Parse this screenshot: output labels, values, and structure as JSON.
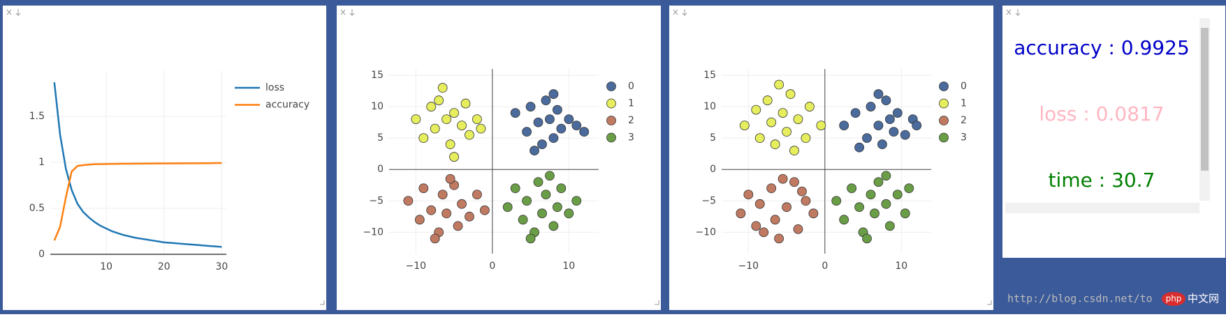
{
  "chart_data": [
    {
      "type": "line",
      "x": [
        1,
        2,
        3,
        4,
        5,
        6,
        7,
        8,
        9,
        10,
        11,
        12,
        13,
        14,
        15,
        16,
        17,
        18,
        19,
        20,
        21,
        22,
        23,
        24,
        25,
        26,
        27,
        28,
        29,
        30
      ],
      "series": [
        {
          "name": "loss",
          "color": "#1f77b4",
          "values": [
            1.87,
            1.3,
            0.93,
            0.7,
            0.55,
            0.46,
            0.4,
            0.35,
            0.31,
            0.28,
            0.25,
            0.23,
            0.21,
            0.195,
            0.18,
            0.17,
            0.16,
            0.15,
            0.14,
            0.13,
            0.125,
            0.12,
            0.115,
            0.11,
            0.105,
            0.1,
            0.095,
            0.09,
            0.085,
            0.08
          ]
        },
        {
          "name": "accuracy",
          "color": "#ff7f0e",
          "values": [
            0.15,
            0.3,
            0.62,
            0.9,
            0.96,
            0.97,
            0.975,
            0.98,
            0.98,
            0.982,
            0.983,
            0.984,
            0.985,
            0.985,
            0.986,
            0.986,
            0.987,
            0.987,
            0.988,
            0.988,
            0.988,
            0.989,
            0.989,
            0.99,
            0.99,
            0.99,
            0.991,
            0.991,
            0.992,
            0.992
          ]
        }
      ],
      "xlim": [
        0.3,
        30.8
      ],
      "xticks": [
        10,
        20,
        30
      ],
      "ylim": [
        0,
        2.0
      ],
      "yticks": [
        0,
        0.5,
        1,
        1.5
      ],
      "grid": true,
      "legend": "right"
    },
    {
      "type": "scatter",
      "series": [
        {
          "name": "0",
          "color": "#4a6b9c",
          "x": [
            3,
            4.5,
            5,
            6,
            6.5,
            7,
            7.5,
            8,
            8.5,
            9,
            10,
            11,
            5.5,
            8,
            12
          ],
          "y": [
            9,
            6,
            10,
            7.5,
            4,
            11,
            8,
            5,
            9.5,
            6.5,
            8,
            7,
            3,
            12,
            6
          ]
        },
        {
          "name": "1",
          "color": "#e6ee5e",
          "x": [
            -10,
            -9,
            -8,
            -7.5,
            -7,
            -6,
            -5.5,
            -5,
            -4,
            -3.5,
            -3,
            -2,
            -6.5,
            -5,
            -1.5
          ],
          "y": [
            8,
            5,
            10,
            6.5,
            11,
            8,
            4,
            9,
            7,
            10.5,
            5.5,
            8,
            13,
            2,
            6.5
          ]
        },
        {
          "name": "2",
          "color": "#c17a62",
          "x": [
            -11,
            -9.5,
            -9,
            -8,
            -7,
            -6.5,
            -6,
            -5,
            -4.5,
            -4,
            -3,
            -2,
            -7.5,
            -5.5,
            -1
          ],
          "y": [
            -5,
            -8,
            -3,
            -6.5,
            -10,
            -4,
            -7,
            -2.5,
            -9,
            -5.5,
            -7.5,
            -4,
            -11,
            -1.5,
            -6.5
          ]
        },
        {
          "name": "3",
          "color": "#6a9e46",
          "x": [
            2,
            3,
            4,
            4.5,
            5.5,
            6,
            6.5,
            7,
            8,
            8.5,
            9,
            10,
            11,
            5,
            7.5
          ],
          "y": [
            -6,
            -3,
            -8,
            -5,
            -10,
            -2,
            -7,
            -4,
            -9,
            -6,
            -3,
            -7,
            -5,
            -11,
            -1
          ]
        }
      ],
      "xlim": [
        -13.5,
        13.9
      ],
      "xticks": [
        {
          "value": -10,
          "label": "−10"
        },
        0,
        10
      ],
      "ylim": [
        -13.4,
        16
      ],
      "yticks": [
        {
          "value": -10,
          "label": "−10"
        },
        {
          "value": -5,
          "label": "−5"
        },
        0,
        5,
        10,
        15
      ],
      "grid": true,
      "zeroline": true,
      "legend": "right"
    },
    {
      "type": "scatter",
      "series": [
        {
          "name": "0",
          "color": "#4a6b9c",
          "x": [
            2.5,
            4,
            5.5,
            6,
            7,
            7.5,
            8,
            8.5,
            9,
            9.5,
            10.5,
            11.5,
            4.5,
            7,
            12
          ],
          "y": [
            7,
            9,
            5,
            10,
            7,
            4,
            11,
            8,
            6,
            9,
            5.5,
            8,
            3.5,
            12,
            7
          ]
        },
        {
          "name": "1",
          "color": "#e6ee5e",
          "x": [
            -10.5,
            -9,
            -8.5,
            -7.5,
            -7,
            -6.5,
            -5.5,
            -5,
            -4.5,
            -3.5,
            -2.5,
            -2,
            -6,
            -4,
            -0.5
          ],
          "y": [
            7,
            9.5,
            5,
            11,
            7.5,
            4,
            9,
            6,
            12,
            8,
            5,
            10,
            13.5,
            3,
            7
          ]
        },
        {
          "name": "2",
          "color": "#c17a62",
          "x": [
            -11,
            -10,
            -9,
            -8.5,
            -7,
            -6.5,
            -6,
            -5,
            -4,
            -3.5,
            -2.5,
            -1.5,
            -8,
            -5.5,
            -3
          ],
          "y": [
            -7,
            -4,
            -9,
            -5.5,
            -3,
            -8,
            -11,
            -6,
            -2,
            -9.5,
            -5,
            -7,
            -10,
            -1.5,
            -3.5
          ]
        },
        {
          "name": "3",
          "color": "#6a9e46",
          "x": [
            1.5,
            2.5,
            3.5,
            4.5,
            5,
            6,
            6.5,
            7,
            8,
            8.5,
            9.5,
            10.5,
            11,
            5.5,
            8
          ],
          "y": [
            -5,
            -8,
            -3,
            -6,
            -10,
            -4,
            -7,
            -2,
            -5.5,
            -9,
            -4,
            -7,
            -3,
            -11,
            -1
          ]
        }
      ],
      "xlim": [
        -13.5,
        13.9
      ],
      "xticks": [
        {
          "value": -10,
          "label": "−10"
        },
        0,
        10
      ],
      "ylim": [
        -13.4,
        16
      ],
      "yticks": [
        {
          "value": -10,
          "label": "−10"
        },
        {
          "value": -5,
          "label": "−5"
        },
        0,
        5,
        10,
        15
      ],
      "grid": true,
      "zeroline": true,
      "legend": "right"
    }
  ],
  "text_pane": {
    "lines": [
      {
        "text": "accuracy : 0.9925",
        "color": "#0000c8"
      },
      {
        "text": "loss : 0.0817",
        "color": "#ffb6c1"
      },
      {
        "text": "time : 30.7",
        "color": "#008000"
      }
    ]
  },
  "watermark": {
    "url": "http://blog.csdn.net/to",
    "logo": "php",
    "site": "中文网"
  }
}
